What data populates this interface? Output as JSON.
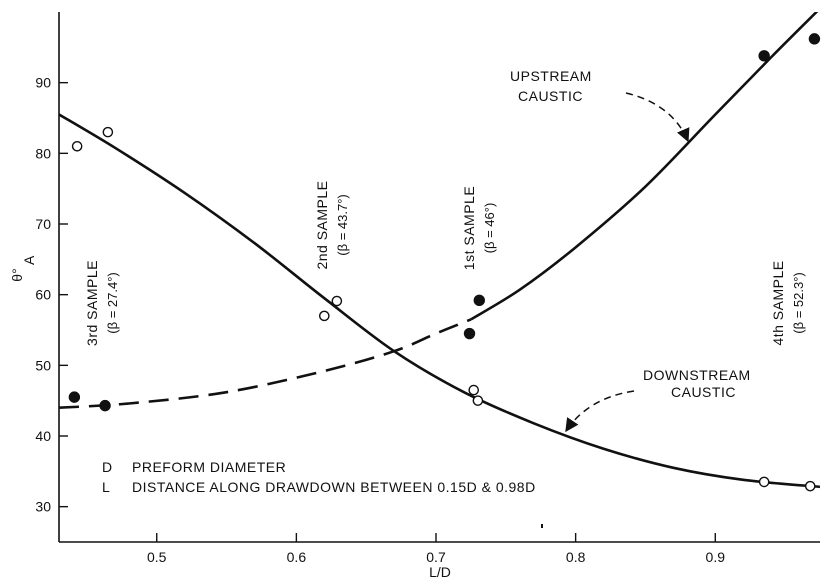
{
  "chart_data": {
    "type": "scatter",
    "title": "",
    "xlabel": "L/D",
    "ylabel_main": "θ°",
    "ylabel_sub": "A",
    "xlim": [
      0.43,
      0.975
    ],
    "ylim": [
      25,
      100
    ],
    "xticks": [
      {
        "value": 0.5,
        "label": "0.5"
      },
      {
        "value": 0.6,
        "label": "0.6"
      },
      {
        "value": 0.7,
        "label": "0.7"
      },
      {
        "value": 0.8,
        "label": "0.8"
      },
      {
        "value": 0.9,
        "label": "0.9"
      }
    ],
    "yticks": [
      {
        "value": 30,
        "label": "30"
      },
      {
        "value": 40,
        "label": "40"
      },
      {
        "value": 50,
        "label": "50"
      },
      {
        "value": 60,
        "label": "60"
      },
      {
        "value": 70,
        "label": "70"
      },
      {
        "value": 80,
        "label": "80"
      },
      {
        "value": 90,
        "label": "90"
      }
    ],
    "series": [
      {
        "marker": "filled",
        "points": [
          {
            "x": 0.441,
            "y": 45.5
          },
          {
            "x": 0.463,
            "y": 44.3
          },
          {
            "x": 0.724,
            "y": 54.5
          },
          {
            "x": 0.731,
            "y": 59.2
          },
          {
            "x": 0.935,
            "y": 93.8
          },
          {
            "x": 0.971,
            "y": 96.2
          }
        ],
        "curve_dashed": [
          [
            0.43,
            44.0
          ],
          [
            0.48,
            44.6
          ],
          [
            0.55,
            46.2
          ],
          [
            0.62,
            49.2
          ],
          [
            0.67,
            52.0
          ],
          [
            0.7,
            54.5
          ],
          [
            0.725,
            56.5
          ]
        ],
        "curve_solid": [
          [
            0.725,
            56.5
          ],
          [
            0.76,
            60.7
          ],
          [
            0.8,
            66.7
          ],
          [
            0.85,
            75.3
          ],
          [
            0.9,
            85.5
          ],
          [
            0.94,
            93.6
          ],
          [
            0.975,
            100.5
          ]
        ]
      },
      {
        "marker": "open",
        "points": [
          {
            "x": 0.443,
            "y": 81.0
          },
          {
            "x": 0.465,
            "y": 83.0
          },
          {
            "x": 0.62,
            "y": 57.0
          },
          {
            "x": 0.629,
            "y": 59.1
          },
          {
            "x": 0.727,
            "y": 46.5
          },
          {
            "x": 0.73,
            "y": 45.0
          },
          {
            "x": 0.935,
            "y": 33.5
          },
          {
            "x": 0.968,
            "y": 32.9
          }
        ],
        "curve_solid": [
          [
            0.43,
            85.5
          ],
          [
            0.47,
            80.8
          ],
          [
            0.52,
            74.4
          ],
          [
            0.57,
            67.3
          ],
          [
            0.62,
            59.5
          ],
          [
            0.67,
            52.0
          ],
          [
            0.72,
            46.2
          ],
          [
            0.77,
            41.8
          ],
          [
            0.82,
            38.2
          ],
          [
            0.87,
            35.5
          ],
          [
            0.92,
            33.8
          ],
          [
            0.975,
            32.8
          ]
        ]
      }
    ],
    "annotations": {
      "upstream_line1": "UPSTREAM",
      "upstream_line2": "CAUSTIC",
      "downstream_line1": "DOWNSTREAM",
      "downstream_line2": "CAUSTIC",
      "sample3_title": "3rd SAMPLE",
      "sample3_beta": "(β = 27.4°)",
      "sample2_title": "2nd SAMPLE",
      "sample2_beta": "(β = 43.7°)",
      "sample1_title": "1st SAMPLE",
      "sample1_beta": "(β = 46°)",
      "sample4_title": "4th SAMPLE",
      "sample4_beta": "(β = 52.3°)"
    },
    "legend": [
      {
        "key": "D",
        "text": "PREFORM DIAMETER"
      },
      {
        "key": "L",
        "text": "DISTANCE ALONG DRAWDOWN BETWEEN 0.15D & 0.98D"
      }
    ],
    "grid": false
  }
}
